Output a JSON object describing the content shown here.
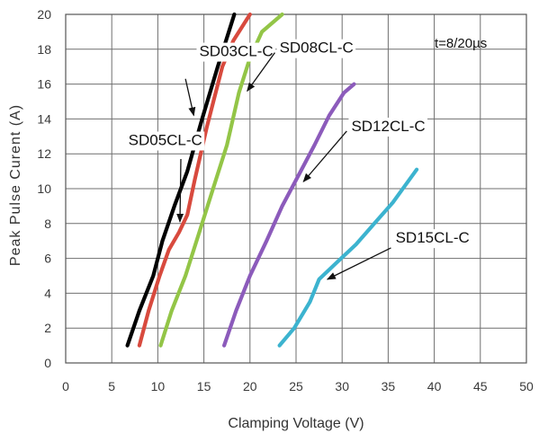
{
  "chart_data": {
    "type": "line",
    "xlabel": "Clamping Voltage (V)",
    "ylabel": "Peak  Pulse Curent (A)",
    "xlim": [
      0,
      50
    ],
    "ylim": [
      0,
      20
    ],
    "xticks": [
      "0",
      "5",
      "10",
      "15",
      "20",
      "25",
      "30",
      "35",
      "40",
      "45",
      "50"
    ],
    "yticks": [
      "0",
      "2",
      "4",
      "6",
      "8",
      "10",
      "12",
      "14",
      "16",
      "18",
      "20"
    ],
    "grid": true,
    "annotation": "t=8/20µs",
    "series": [
      {
        "name": "SD03CL-C",
        "color": "#000000",
        "x": [
          6.7,
          8.0,
          9.5,
          10.5,
          11.8,
          13.2,
          14.8,
          16.5,
          18.3
        ],
        "y": [
          1,
          3,
          5,
          7,
          9,
          11,
          14,
          17,
          20
        ]
      },
      {
        "name": "SD05CL-C",
        "color": "#d84a3e",
        "x": [
          8.0,
          9.0,
          10.2,
          11.2,
          12.3,
          13.2,
          14.0,
          15.3,
          17.0,
          18.2,
          20.0
        ],
        "y": [
          1,
          3,
          5,
          6.5,
          7.5,
          8.5,
          10.5,
          13.5,
          17,
          18.5,
          20
        ]
      },
      {
        "name": "SD08CL-C",
        "color": "#93c547",
        "x": [
          10.3,
          11.5,
          13.0,
          14.5,
          16.0,
          17.5,
          18.8,
          20.0,
          21.3,
          23.5
        ],
        "y": [
          1,
          3,
          5,
          7.5,
          10,
          12.5,
          15.5,
          17.5,
          19,
          20
        ]
      },
      {
        "name": "SD12CL-C",
        "color": "#8c5bbb",
        "x": [
          17.2,
          18.5,
          20.0,
          21.8,
          23.5,
          25.3,
          27.0,
          28.6,
          30.2,
          31.3
        ],
        "y": [
          1,
          3,
          5,
          7,
          9,
          10.8,
          12.5,
          14.2,
          15.5,
          16
        ]
      },
      {
        "name": "SD15CL-C",
        "color": "#3cb3cf",
        "x": [
          23.2,
          24.8,
          26.5,
          27.5,
          29.3,
          31.5,
          33.5,
          35.5,
          37.0,
          38.1
        ],
        "y": [
          1,
          2,
          3.5,
          4.8,
          5.7,
          6.8,
          8.0,
          9.2,
          10.3,
          11.1
        ]
      }
    ],
    "callouts": [
      {
        "series": "SD03CL-C",
        "label": "SD03CL-C",
        "label_x": 14.5,
        "label_y": 17.6,
        "line_from": [
          13.0,
          16.3
        ],
        "arrow_to": [
          13.9,
          14.2
        ]
      },
      {
        "series": "SD05CL-C",
        "label": "SD05CL-C",
        "label_x": 6.8,
        "label_y": 12.5,
        "line_from": [
          12.5,
          11.7
        ],
        "arrow_to": [
          12.4,
          8.1
        ]
      },
      {
        "series": "SD08CL-C",
        "label": "SD08CL-C",
        "label_x": 23.2,
        "label_y": 17.8,
        "line_from": [
          22.7,
          17.8
        ],
        "arrow_to": [
          19.7,
          15.6
        ]
      },
      {
        "series": "SD12CL-C",
        "label": "SD12CL-C",
        "label_x": 31.0,
        "label_y": 13.3,
        "line_from": [
          30.5,
          13.3
        ],
        "arrow_to": [
          25.8,
          10.4
        ]
      },
      {
        "series": "SD15CL-C",
        "label": "SD15CL-C",
        "label_x": 35.8,
        "label_y": 6.9,
        "line_from": [
          35.3,
          6.6
        ],
        "arrow_to": [
          28.4,
          4.8
        ]
      }
    ]
  }
}
